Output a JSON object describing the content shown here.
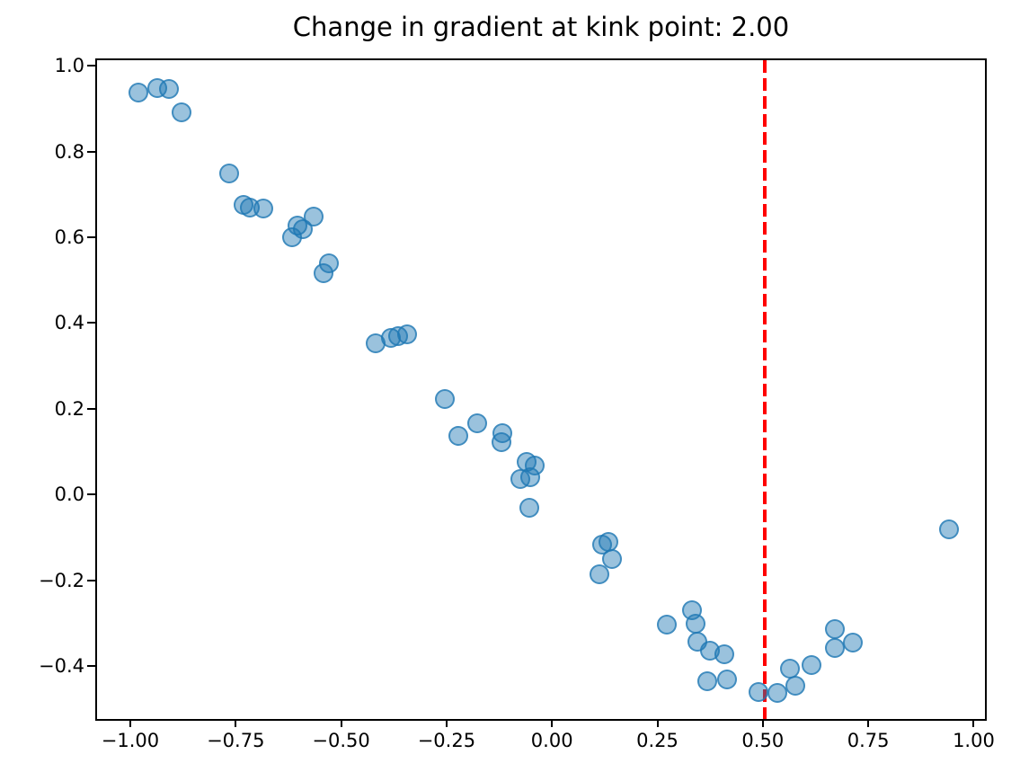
{
  "figure": {
    "background": "#ffffff",
    "spine_color": "#000000",
    "text_color": "#000000"
  },
  "chart_data": {
    "type": "scatter",
    "title": "Change in gradient at kink point: 2.00",
    "xlabel": "",
    "ylabel": "",
    "grid": false,
    "legend": "none",
    "xlim": [
      -1.083,
      1.031
    ],
    "ylim": [
      -0.528,
      1.017
    ],
    "xticks": [
      {
        "v": -1.0,
        "label": "−1.00"
      },
      {
        "v": -0.75,
        "label": "−0.75"
      },
      {
        "v": -0.5,
        "label": "−0.50"
      },
      {
        "v": -0.25,
        "label": "−0.25"
      },
      {
        "v": 0.0,
        "label": "0.00"
      },
      {
        "v": 0.25,
        "label": "0.25"
      },
      {
        "v": 0.5,
        "label": "0.50"
      },
      {
        "v": 0.75,
        "label": "0.75"
      },
      {
        "v": 1.0,
        "label": "1.00"
      }
    ],
    "yticks": [
      {
        "v": 1.0,
        "label": "1.0"
      },
      {
        "v": 0.8,
        "label": "0.8"
      },
      {
        "v": 0.6,
        "label": "0.6"
      },
      {
        "v": 0.4,
        "label": "0.4"
      },
      {
        "v": 0.2,
        "label": "0.2"
      },
      {
        "v": 0.0,
        "label": "0.0"
      },
      {
        "v": -0.2,
        "label": "−0.2"
      },
      {
        "v": -0.4,
        "label": "−0.4"
      }
    ],
    "marker": {
      "color": "#1f77b4",
      "alpha": 0.5,
      "shape": "circle"
    },
    "vline": {
      "x": 0.5,
      "color": "#ff0000",
      "style": "dashed"
    },
    "points": [
      [
        -0.986,
        0.942
      ],
      [
        -0.941,
        0.952
      ],
      [
        -0.913,
        0.95
      ],
      [
        -0.883,
        0.896
      ],
      [
        -0.77,
        0.753
      ],
      [
        -0.735,
        0.68
      ],
      [
        -0.721,
        0.674
      ],
      [
        -0.689,
        0.672
      ],
      [
        -0.621,
        0.604
      ],
      [
        -0.607,
        0.632
      ],
      [
        -0.595,
        0.622
      ],
      [
        -0.57,
        0.653
      ],
      [
        -0.545,
        0.52
      ],
      [
        -0.533,
        0.543
      ],
      [
        -0.423,
        0.356
      ],
      [
        -0.387,
        0.37
      ],
      [
        -0.369,
        0.374
      ],
      [
        -0.348,
        0.377
      ],
      [
        -0.259,
        0.227
      ],
      [
        -0.227,
        0.141
      ],
      [
        -0.181,
        0.171
      ],
      [
        -0.124,
        0.127
      ],
      [
        -0.121,
        0.147
      ],
      [
        -0.08,
        0.04
      ],
      [
        -0.065,
        0.079
      ],
      [
        -0.058,
        -0.028
      ],
      [
        -0.055,
        0.044
      ],
      [
        -0.045,
        0.072
      ],
      [
        0.108,
        -0.182
      ],
      [
        0.115,
        -0.112
      ],
      [
        0.129,
        -0.106
      ],
      [
        0.138,
        -0.147
      ],
      [
        0.269,
        -0.299
      ],
      [
        0.328,
        -0.266
      ],
      [
        0.337,
        -0.297
      ],
      [
        0.341,
        -0.34
      ],
      [
        0.364,
        -0.431
      ],
      [
        0.371,
        -0.36
      ],
      [
        0.404,
        -0.368
      ],
      [
        0.41,
        -0.428
      ],
      [
        0.486,
        -0.456
      ],
      [
        0.531,
        -0.458
      ],
      [
        0.561,
        -0.402
      ],
      [
        0.573,
        -0.442
      ],
      [
        0.612,
        -0.393
      ],
      [
        0.666,
        -0.311
      ],
      [
        0.666,
        -0.354
      ],
      [
        0.71,
        -0.342
      ],
      [
        0.938,
        -0.078
      ]
    ]
  }
}
